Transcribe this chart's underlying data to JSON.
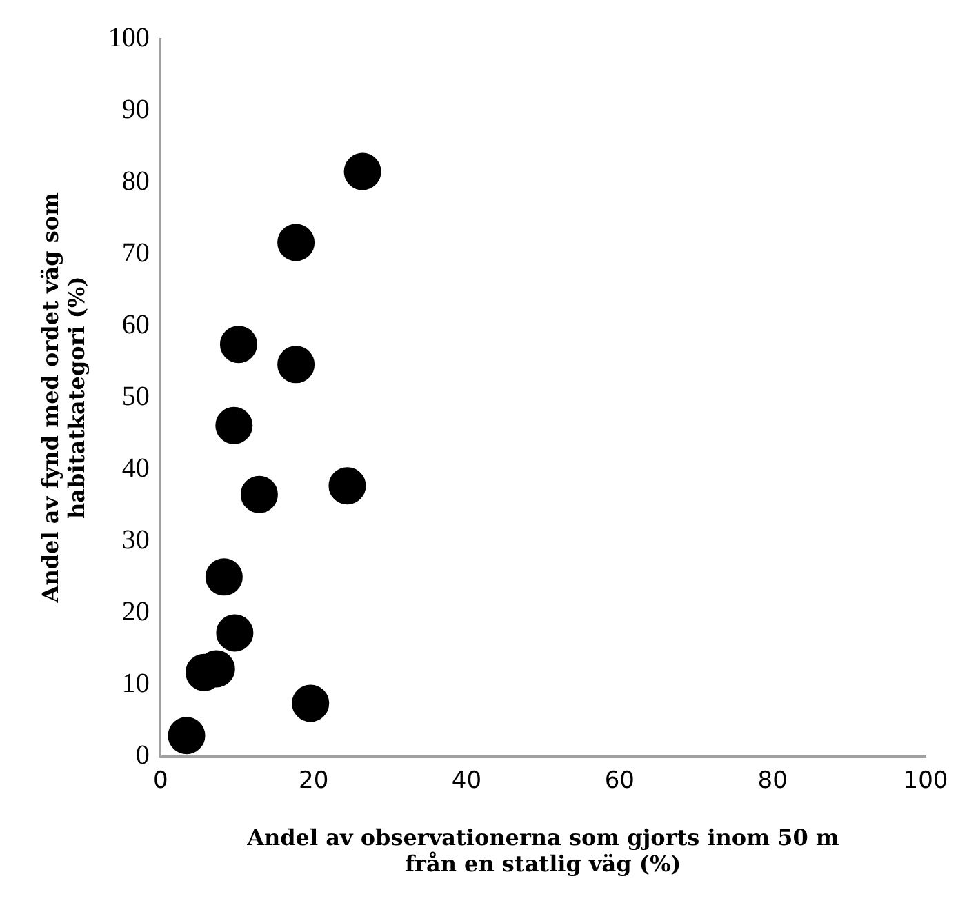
{
  "chart_data": {
    "type": "scatter",
    "xlabel": "Andel av observationerna som gjorts inom 50 m från en statlig väg (%)",
    "ylabel": "Andel av fynd med ordet väg som habitatkategori (%)",
    "series": [
      {
        "color": "#000000",
        "x": [
          26.4,
          17.7,
          10.2,
          17.7,
          9.6,
          12.9,
          24.4,
          8.3,
          9.7,
          7.3,
          5.7,
          19.6,
          3.4
        ],
        "values": [
          81.5,
          71.6,
          57.4,
          54.6,
          46.1,
          36.5,
          37.7,
          25.0,
          17.2,
          12.2,
          11.7,
          7.4,
          2.9
        ]
      }
    ],
    "xlim": [
      0,
      100
    ],
    "xticks": [
      0,
      20,
      40,
      60,
      80,
      100
    ],
    "ylim": [
      0,
      100
    ],
    "yticks": [
      0,
      10,
      20,
      30,
      40,
      50,
      60,
      70,
      80,
      90,
      100
    ],
    "grid": false,
    "legend": false,
    "marker": "circle"
  }
}
